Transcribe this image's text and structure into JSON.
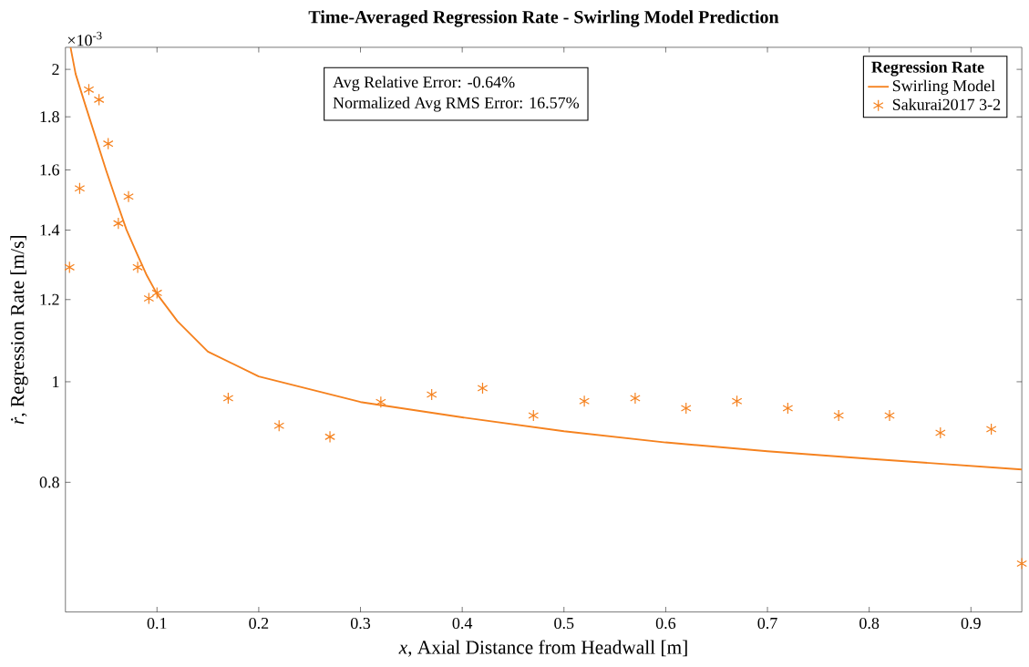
{
  "chart_data": {
    "type": "scatter",
    "title": "Time-Averaged Regression Rate - Swirling Model Prediction",
    "xlabel": "*x*, Axial Distance from Headwall [m]",
    "ylabel": "*ṙ*, Regression Rate [m/s]",
    "legend_title": "Regression Rate",
    "legend": "top right",
    "log": "y",
    "grid": false,
    "xlim": [
      0.01,
      0.95
    ],
    "ylim": [
      0.6,
      2.1
    ],
    "xticks": [
      0.1,
      0.2,
      0.3,
      0.4,
      0.5,
      0.6,
      0.7,
      0.8,
      0.9
    ],
    "yticks": [
      0.8,
      1,
      1.2,
      1.4,
      1.6,
      1.8,
      2
    ],
    "annotations": [
      "Avg Relative Error: -0.64%",
      "Normalized Avg RMS Error: 16.57%",
      "×10$^{-3}$"
    ],
    "series": [
      {
        "name": "Swirling Model",
        "type": "line",
        "marker": "none",
        "line_style": "solid",
        "color": "#f5821f",
        "x": [
          0.015,
          0.02,
          0.03,
          0.04,
          0.05,
          0.06,
          0.07,
          0.08,
          0.09,
          0.1,
          0.12,
          0.15,
          0.2,
          0.3,
          0.4,
          0.5,
          0.6,
          0.7,
          0.8,
          0.95
        ],
        "values": [
          2.1,
          1.98,
          1.842,
          1.716,
          1.598,
          1.495,
          1.401,
          1.331,
          1.266,
          1.215,
          1.144,
          1.069,
          1.012,
          0.956,
          0.924,
          0.896,
          0.874,
          0.857,
          0.843,
          0.823
        ]
      },
      {
        "name": "Sakurai2017 3-2",
        "marker": "cross",
        "color": "#f5821f",
        "x": [
          0.014,
          0.024,
          0.033,
          0.043,
          0.052,
          0.062,
          0.072,
          0.081,
          0.092,
          0.1,
          0.17,
          0.22,
          0.27,
          0.32,
          0.37,
          0.42,
          0.47,
          0.52,
          0.57,
          0.62,
          0.67,
          0.72,
          0.77,
          0.82,
          0.87,
          0.92,
          0.95
        ],
        "values": [
          1.289,
          1.536,
          1.912,
          1.87,
          1.696,
          1.421,
          1.508,
          1.289,
          1.203,
          1.218,
          0.964,
          0.907,
          0.885,
          0.956,
          0.972,
          0.986,
          0.928,
          0.958,
          0.964,
          0.943,
          0.958,
          0.943,
          0.928,
          0.928,
          0.893,
          0.9,
          0.668
        ]
      }
    ]
  }
}
